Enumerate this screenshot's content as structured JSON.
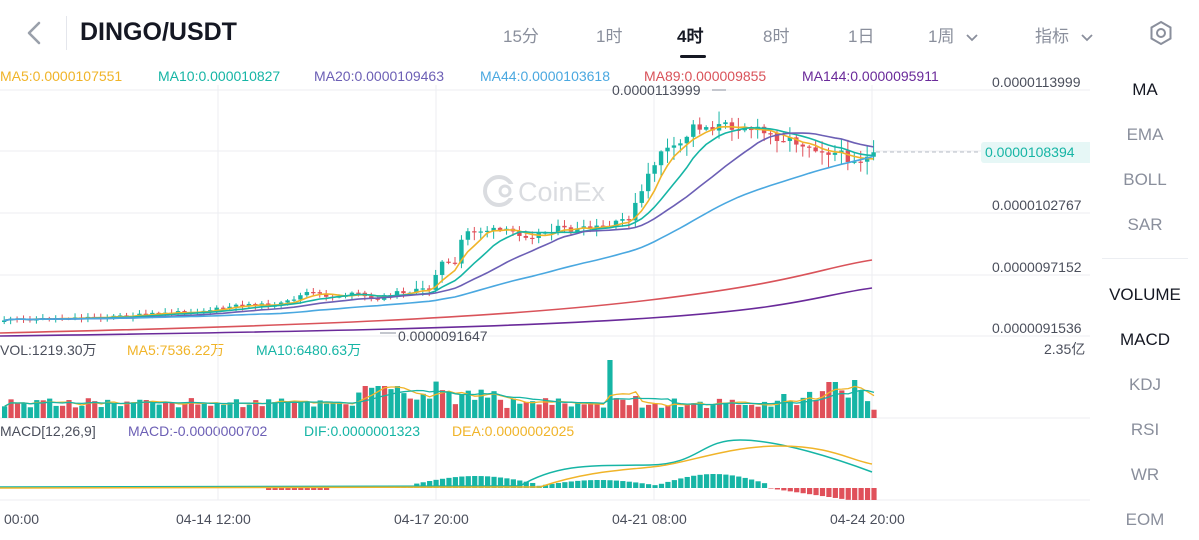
{
  "header": {
    "pair": "DINGO/USDT",
    "timeframes": [
      "15分",
      "1时",
      "4时",
      "8时",
      "1日"
    ],
    "active_timeframe_index": 2,
    "week": "1周",
    "indicator": "指标"
  },
  "ma_legend": [
    {
      "label": "MA5:0.0000107551",
      "color": "#f0b429"
    },
    {
      "label": "MA10:0.000010827",
      "color": "#16b5a5"
    },
    {
      "label": "MA20:0.0000109463",
      "color": "#6c5fb5"
    },
    {
      "label": "MA44:0.0000103618",
      "color": "#4aa8e0"
    },
    {
      "label": "MA89:0.000009855",
      "color": "#d9535a"
    },
    {
      "label": "MA144:0.0000095911",
      "color": "#6a2a9a"
    }
  ],
  "vol_legend": [
    {
      "label": "VOL:1219.30万",
      "color": "#4b4f5c"
    },
    {
      "label": "MA5:7536.22万",
      "color": "#f0b429"
    },
    {
      "label": "MA10:6480.63万",
      "color": "#16b5a5"
    }
  ],
  "macd_legend": [
    {
      "label": "MACD[12,26,9]",
      "color": "#4b4f5c"
    },
    {
      "label": "MACD:-0.0000000702",
      "color": "#6c5fb5"
    },
    {
      "label": "DIF:0.0000001323",
      "color": "#16b5a5"
    },
    {
      "label": "DEA:0.0000002025",
      "color": "#f0b429"
    }
  ],
  "right_panel": {
    "main": [
      "MA",
      "EMA",
      "BOLL",
      "SAR"
    ],
    "main_active": "MA",
    "sub": [
      "VOLUME",
      "MACD",
      "KDJ",
      "RSI",
      "WR",
      "EOM"
    ],
    "sub_active": [
      "VOLUME",
      "MACD"
    ]
  },
  "watermark": "CoinEx",
  "chart_data": {
    "type": "candlestick",
    "price_axis_labels": [
      "0.0000113999",
      "0.0000102767",
      "0.0000097152",
      "0.0000091536"
    ],
    "current_price": "0.0000108394",
    "high_label": "0.0000113999",
    "low_label": "0.0000091647",
    "vol_axis_max": "2.35亿",
    "x_tick_labels": [
      "00:00",
      "04-14 12:00",
      "04-17 20:00",
      "04-21 08:00",
      "04-24 20:00"
    ],
    "price_range": [
      9.0825e-06,
      1.14824e-05
    ],
    "colors": {
      "up": "#16b5a5",
      "down": "#e0505a"
    },
    "candles": [
      [
        9.2e-06,
        9.2e-06,
        9.2e-06,
        9.2e-06
      ],
      [
        9.2e-06,
        9.2e-06,
        9.2e-06,
        9.2e-06
      ]
    ]
  }
}
